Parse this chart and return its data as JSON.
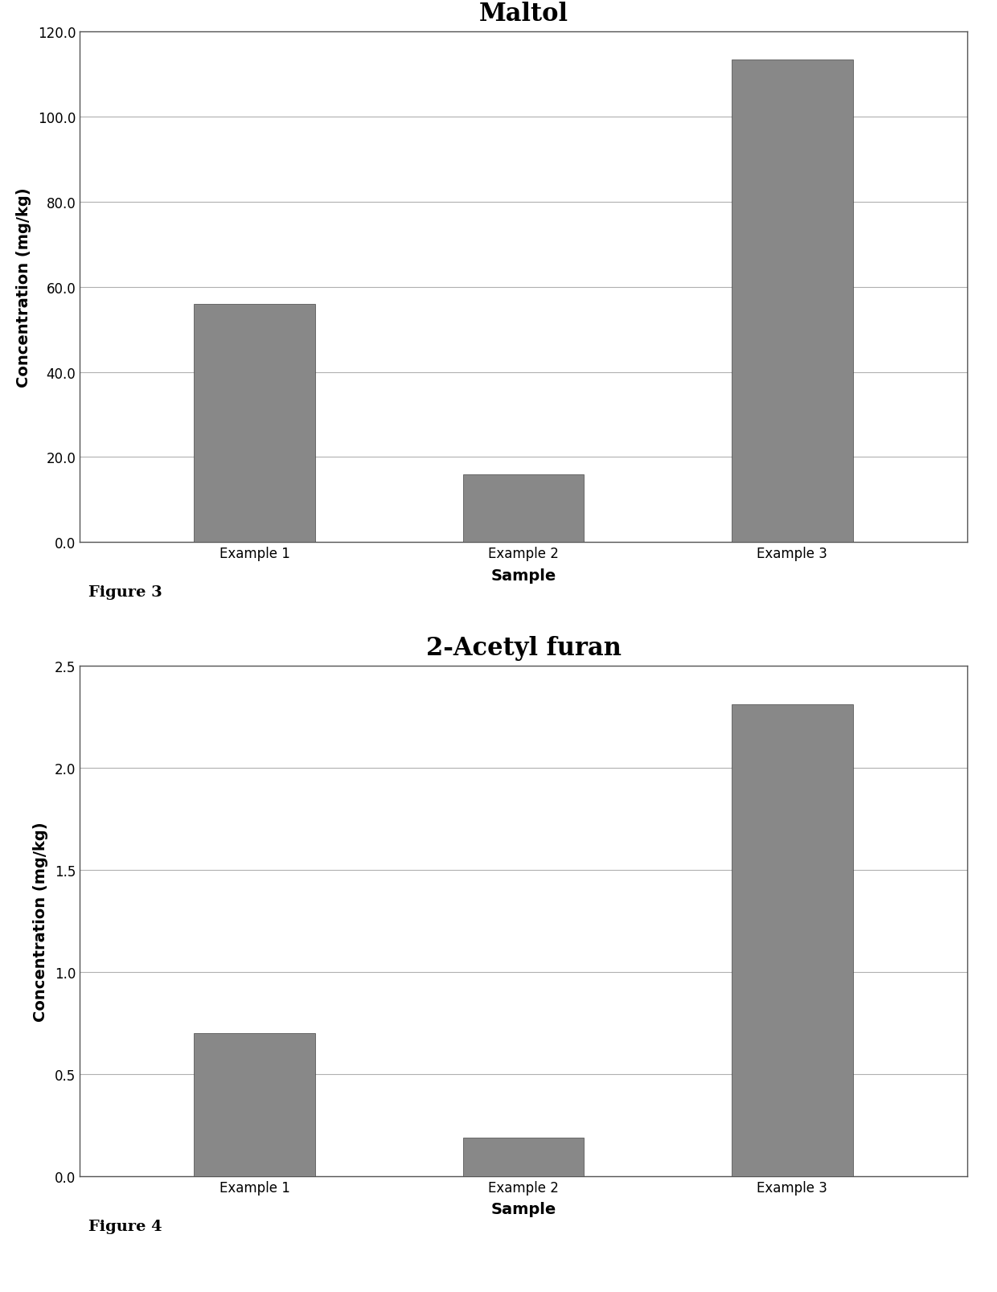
{
  "charts": [
    {
      "title": "Maltol",
      "categories": [
        "Example 1",
        "Example 2",
        "Example 3"
      ],
      "values": [
        56.0,
        16.0,
        113.5
      ],
      "ylabel": "Concentration (mg/kg)",
      "xlabel": "Sample",
      "ylim": [
        0,
        120.0
      ],
      "yticks": [
        0.0,
        20.0,
        40.0,
        60.0,
        80.0,
        100.0,
        120.0
      ],
      "figure_label": "Figure 3"
    },
    {
      "title": "2-Acetyl furan",
      "categories": [
        "Example 1",
        "Example 2",
        "Example 3"
      ],
      "values": [
        0.7,
        0.19,
        2.31
      ],
      "ylabel": "Concentration (mg/kg)",
      "xlabel": "Sample",
      "ylim": [
        0,
        2.5
      ],
      "yticks": [
        0.0,
        0.5,
        1.0,
        1.5,
        2.0,
        2.5
      ],
      "figure_label": "Figure 4"
    }
  ],
  "background_color": "#ffffff",
  "bar_color": "#888888",
  "bar_width": 0.45,
  "title_fontsize": 22,
  "axis_label_fontsize": 14,
  "tick_fontsize": 12,
  "figure_label_fontsize": 14,
  "grid_color": "#b0b0b0",
  "spine_color": "#555555"
}
